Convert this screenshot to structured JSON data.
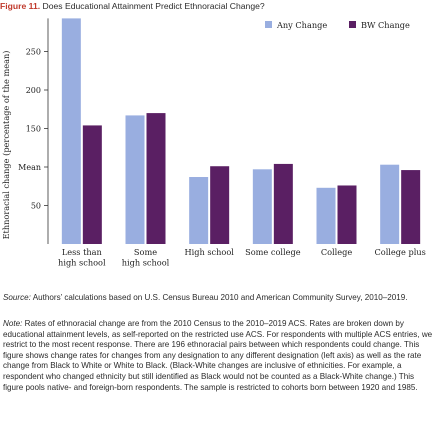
{
  "figure_label": "Figure 11.",
  "figure_title": "Does Educational Attainment Predict Ethnoracial Change?",
  "source_label": "Source:",
  "source_text": "Authors’ calculations based on U.S. Census Bureau 2010 and American Community Survey, 2010–2019.",
  "note_label": "Note:",
  "note_text": "Rates of ethnoracial change are from the 2010 Census to the 2010–2019 ACS. Rates are broken down by educational attainment levels, as self-reported on the restricted use ACS. For respondents with multiple ACS entries, we restrict to the most recent response. There are 196 ethnoracial pairs between which respondents could change. This figure shows change rates for changes from any designation to any different designation (left axis) as well as the rate change from Black to White or White to Black. (Black-White changes are inclusive of ethnicities. For example, a respondent who changed ethnicity but still identified as Black would not be counted as a Black-White change.) This figure pools native- and foreign-born respondents. The sample is restricted to cohorts born between 1920 and 1985.",
  "chart_data": {
    "type": "bar",
    "categories": [
      "Less than\nhigh school",
      "Some\nhigh school",
      "High school",
      "Some college",
      "College",
      "College plus"
    ],
    "series": [
      {
        "name": "Any Change",
        "color": "#99aee0",
        "values": [
          293,
          167,
          87,
          97,
          73,
          103
        ]
      },
      {
        "name": "BW Change",
        "color": "#5a1f63",
        "values": [
          154,
          170,
          101,
          104,
          76,
          96
        ]
      }
    ],
    "ylabel": "Ethnoracial change (percentage of the mean)",
    "yticks": [
      {
        "value": 50,
        "label": "50"
      },
      {
        "value": 100,
        "label": "Mean"
      },
      {
        "value": 150,
        "label": "150"
      },
      {
        "value": 200,
        "label": "200"
      },
      {
        "value": 250,
        "label": "250"
      }
    ],
    "ylim": [
      0,
      293
    ],
    "grid": false,
    "legend": "top-right"
  }
}
